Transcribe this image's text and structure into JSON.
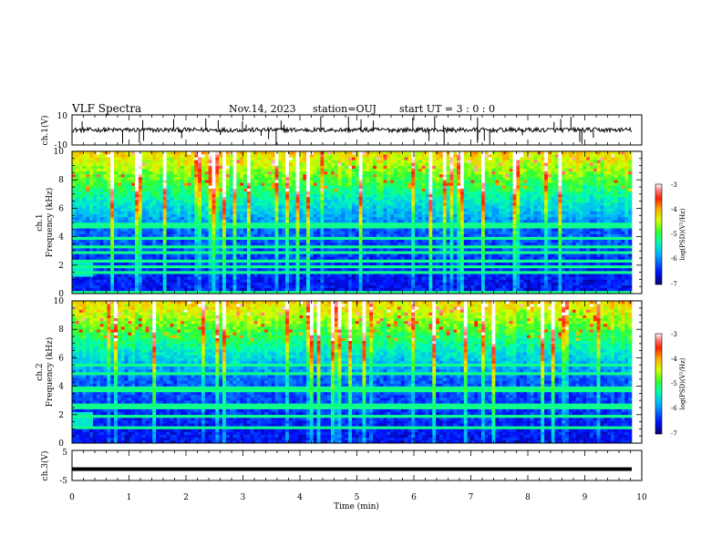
{
  "header": {
    "title": "VLF Spectra",
    "date": "Nov.14, 2023",
    "station": "station=OUJ",
    "start": "start  UT =   3 : 0  : 0"
  },
  "chart_data": [
    {
      "type": "line",
      "panel": "ch1-waveform",
      "ylabel": "ch.1(V)",
      "ylim": [
        -10,
        10
      ],
      "y_ticks": [
        "10",
        "-10"
      ],
      "xlim": [
        0,
        10
      ],
      "baseline": 0
    },
    {
      "type": "heatmap",
      "panel": "ch1-spectrogram",
      "ylabel_line1": "ch.1",
      "ylabel_line2": "Frequency  (kHz)",
      "ylim": [
        0,
        10
      ],
      "y_ticks": [
        "0",
        "2",
        "4",
        "6",
        "8",
        "10"
      ],
      "xlim": [
        0,
        9.85
      ],
      "colorbar": {
        "label": "log(PSD)(V²/Hz)",
        "range": [
          -7,
          -3
        ],
        "ticks": [
          "-3",
          "-4",
          "-5",
          "-6",
          "-7"
        ]
      }
    },
    {
      "type": "heatmap",
      "panel": "ch2-spectrogram",
      "ylabel_line1": "ch.2",
      "ylabel_line2": "Frequency  (kHz)",
      "ylim": [
        0,
        10
      ],
      "y_ticks": [
        "0",
        "2",
        "4",
        "6",
        "8",
        "10"
      ],
      "xlim": [
        0,
        9.85
      ],
      "colorbar": {
        "label": "log(PSD)(V²/Hz)",
        "range": [
          -7,
          -3
        ],
        "ticks": [
          "-3",
          "-4",
          "-5",
          "-6",
          "-7"
        ]
      }
    },
    {
      "type": "line",
      "panel": "ch3-waveform",
      "ylabel": "ch.3(V)",
      "ylim": [
        -5,
        5
      ],
      "y_ticks": [
        "5",
        "-5"
      ],
      "xlim": [
        0,
        10
      ],
      "value": -1.2,
      "xlabel": "Time  (min)",
      "x_ticks": [
        "0",
        "1",
        "2",
        "3",
        "4",
        "5",
        "6",
        "7",
        "8",
        "9",
        "10"
      ]
    }
  ]
}
